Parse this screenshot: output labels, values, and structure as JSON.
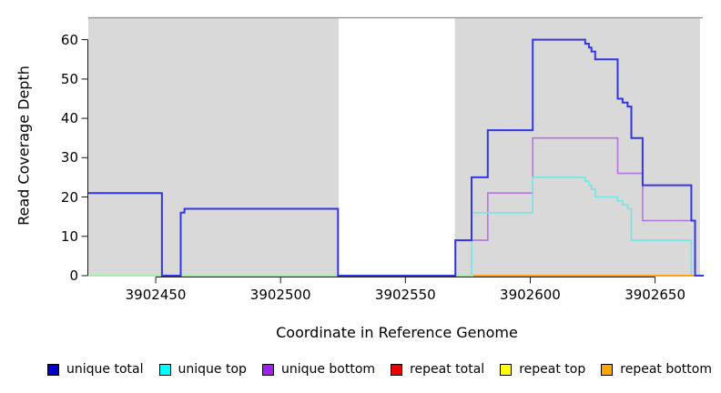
{
  "figure": {
    "x_axis": {
      "label": "Coordinate in Reference Genome",
      "tick_labels": [
        "3902450",
        "3902500",
        "3902550",
        "3902600",
        "3902650"
      ]
    },
    "y_axis": {
      "label": "Read Coverage Depth",
      "tick_labels": [
        "0",
        "10",
        "20",
        "30",
        "40",
        "50",
        "60"
      ]
    },
    "legend": [
      {
        "label": "unique total",
        "color": "#0000CD"
      },
      {
        "label": "unique top",
        "color": "#00FFFF"
      },
      {
        "label": "unique bottom",
        "color": "#A020F0"
      },
      {
        "label": "repeat total",
        "color": "#EE0000"
      },
      {
        "label": "repeat top",
        "color": "#FFFF00"
      },
      {
        "label": "repeat bottom",
        "color": "#FFA500"
      }
    ]
  },
  "chart_data": {
    "type": "line",
    "step": true,
    "title": "",
    "xlabel": "Coordinate in Reference Genome",
    "ylabel": "Read Coverage Depth",
    "xlim": [
      3902423,
      3902670.2
    ],
    "ylim": [
      0,
      65.7
    ],
    "x_ticks": [
      3902450,
      3902500,
      3902550,
      3902600,
      3902650
    ],
    "y_ticks": [
      0,
      10,
      20,
      30,
      40,
      50,
      60
    ],
    "grid": false,
    "legend_position": "bottom",
    "shade_color": "#D9D9D9",
    "shaded_regions": [
      {
        "x0": 3902423,
        "x1": 3902523.3
      },
      {
        "x0": 3902569.8,
        "x1": 3902668
      }
    ],
    "series": [
      {
        "name": "zero baseline (left)",
        "line_color": "#90EE90",
        "line_width": 1.5,
        "in_legend": false,
        "points": [
          [
            3902423,
            0
          ],
          [
            3902576.5,
            0
          ]
        ]
      },
      {
        "name": "unique bottom",
        "line_color": "#B673E2",
        "line_width": 1.6,
        "in_legend": true,
        "points": [
          [
            3902570,
            0
          ],
          [
            3902570,
            9
          ],
          [
            3902583,
            21
          ],
          [
            3902601,
            35
          ],
          [
            3902635,
            26
          ],
          [
            3902645,
            14
          ],
          [
            3902666,
            0
          ],
          [
            3902668,
            0
          ]
        ]
      },
      {
        "name": "unique top",
        "line_color": "#6FE8E8",
        "line_width": 1.6,
        "in_legend": true,
        "points": [
          [
            3902576.5,
            0
          ],
          [
            3902576.5,
            16
          ],
          [
            3902601,
            25
          ],
          [
            3902622,
            24
          ],
          [
            3902623.5,
            23
          ],
          [
            3902624.5,
            22
          ],
          [
            3902626,
            20
          ],
          [
            3902635,
            19
          ],
          [
            3902637,
            18
          ],
          [
            3902639,
            17
          ],
          [
            3902640.5,
            9
          ],
          [
            3902664.5,
            0
          ],
          [
            3902668,
            0
          ]
        ]
      },
      {
        "name": "repeat bottom",
        "line_color": "#FFA018",
        "line_width": 2,
        "in_legend": true,
        "points": [
          [
            3902577,
            0
          ],
          [
            3902668,
            0
          ]
        ]
      },
      {
        "name": "unique total",
        "line_color": "#3535E8",
        "line_width": 2,
        "in_legend": true,
        "points": [
          [
            3902423,
            21
          ],
          [
            3902452.5,
            0
          ],
          [
            3902460,
            16
          ],
          [
            3902461.5,
            17
          ],
          [
            3902523,
            0
          ],
          [
            3902570,
            9
          ],
          [
            3902576.5,
            25
          ],
          [
            3902583,
            37
          ],
          [
            3902601,
            60
          ],
          [
            3902622,
            59
          ],
          [
            3902623.5,
            58
          ],
          [
            3902624.5,
            57
          ],
          [
            3902626,
            55
          ],
          [
            3902635,
            45
          ],
          [
            3902637,
            44
          ],
          [
            3902639,
            43
          ],
          [
            3902640.5,
            35
          ],
          [
            3902645,
            23
          ],
          [
            3902664.5,
            14
          ],
          [
            3902666,
            0
          ],
          [
            3902669.5,
            0
          ]
        ]
      }
    ]
  }
}
